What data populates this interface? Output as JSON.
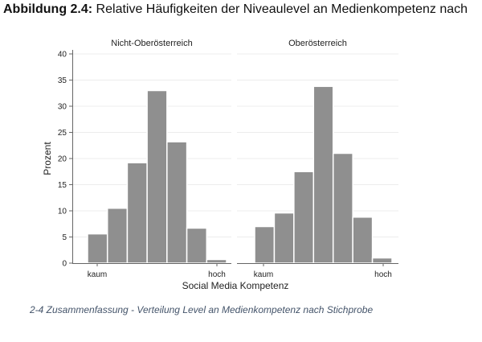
{
  "figure_title": {
    "prefix": "Abbildung 2.4:",
    "text": " Relative Häufigkeiten der Niveaulevel an Medienkompetenz nach"
  },
  "caption": "2-4 Zusammenfassung - Verteilung Level an Medienkompetenz nach Stichprobe",
  "chart_data": {
    "type": "bar",
    "xlabel": "Social Media Kompetenz",
    "ylabel": "Prozent",
    "ylim": [
      0,
      40
    ],
    "yticks": [
      0,
      5,
      10,
      15,
      20,
      25,
      30,
      35,
      40
    ],
    "xtick_labels": [
      "kaum",
      "hoch"
    ],
    "grid": true,
    "bar_color": "#8f8f8f",
    "panels": [
      {
        "title": "Nicht-Oberösterreich",
        "values": [
          5.6,
          10.5,
          19.2,
          33.0,
          23.2,
          6.7,
          0.7
        ]
      },
      {
        "title": "Oberösterreich",
        "values": [
          7.0,
          9.6,
          17.5,
          33.8,
          21.0,
          8.8,
          1.0
        ]
      }
    ]
  }
}
